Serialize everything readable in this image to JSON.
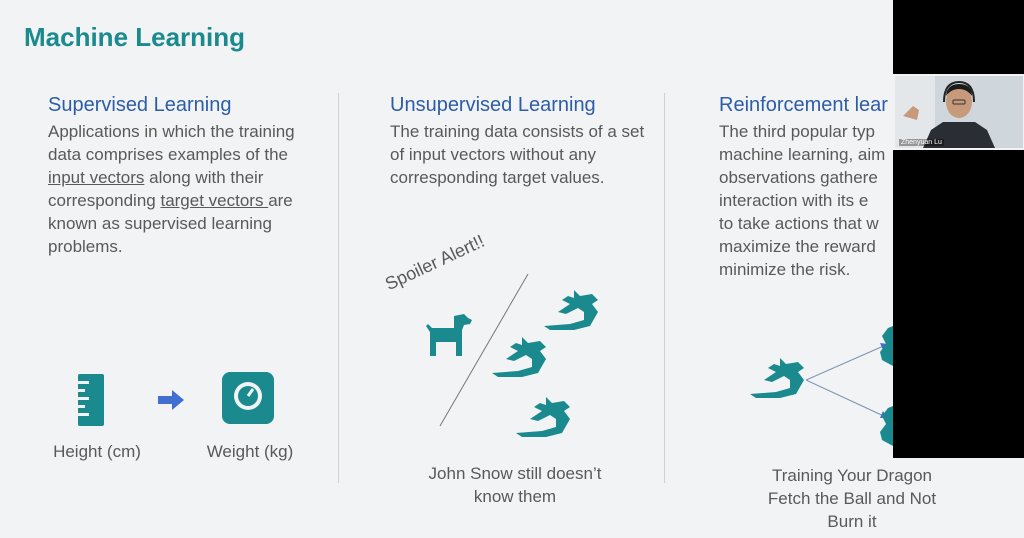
{
  "slide": {
    "title": "Machine Learning",
    "columns": [
      {
        "heading": "Supervised Learning",
        "body_parts": [
          "Applications in which the training data comprises examples of the ",
          "input vectors",
          " along with their corresponding ",
          "target vectors ",
          "are known as supervised learning problems."
        ],
        "icons": {
          "left": "ruler-icon",
          "arrow": "arrow-right-icon",
          "right": "scale-icon"
        },
        "captions": [
          "Height (cm)",
          "Weight (kg)"
        ]
      },
      {
        "heading": "Unsupervised Learning",
        "body": "The training data consists of a set of input vectors without any corresponding target values.",
        "spoiler": "Spoiler Alert!!",
        "icons": [
          "dog-icon",
          "dragon-icon",
          "dragon-icon",
          "dragon-icon"
        ],
        "caption_lines": [
          "John Snow still doesn’t",
          "know them"
        ]
      },
      {
        "heading": "Reinforcement lear",
        "body_lines": [
          "The third popular typ",
          "machine learning, aim",
          "observations gathere",
          "interaction with its e",
          "to take actions that w",
          "maximize the reward",
          "minimize the risk."
        ],
        "icons": [
          "dragon-icon",
          "dragon-icon",
          "dragon-icon"
        ],
        "caption_lines": [
          "Training Your Dragon",
          "Fetch the Ball and Not",
          "Burn it"
        ]
      }
    ]
  },
  "webcam": {
    "participant_name": "Zhenyuan Lu"
  },
  "colors": {
    "title": "#1a8a8e",
    "heading": "#2d5da8",
    "teal_icon": "#1a8a8e",
    "arrow": "#3f6fd1",
    "body_text": "#595959"
  }
}
